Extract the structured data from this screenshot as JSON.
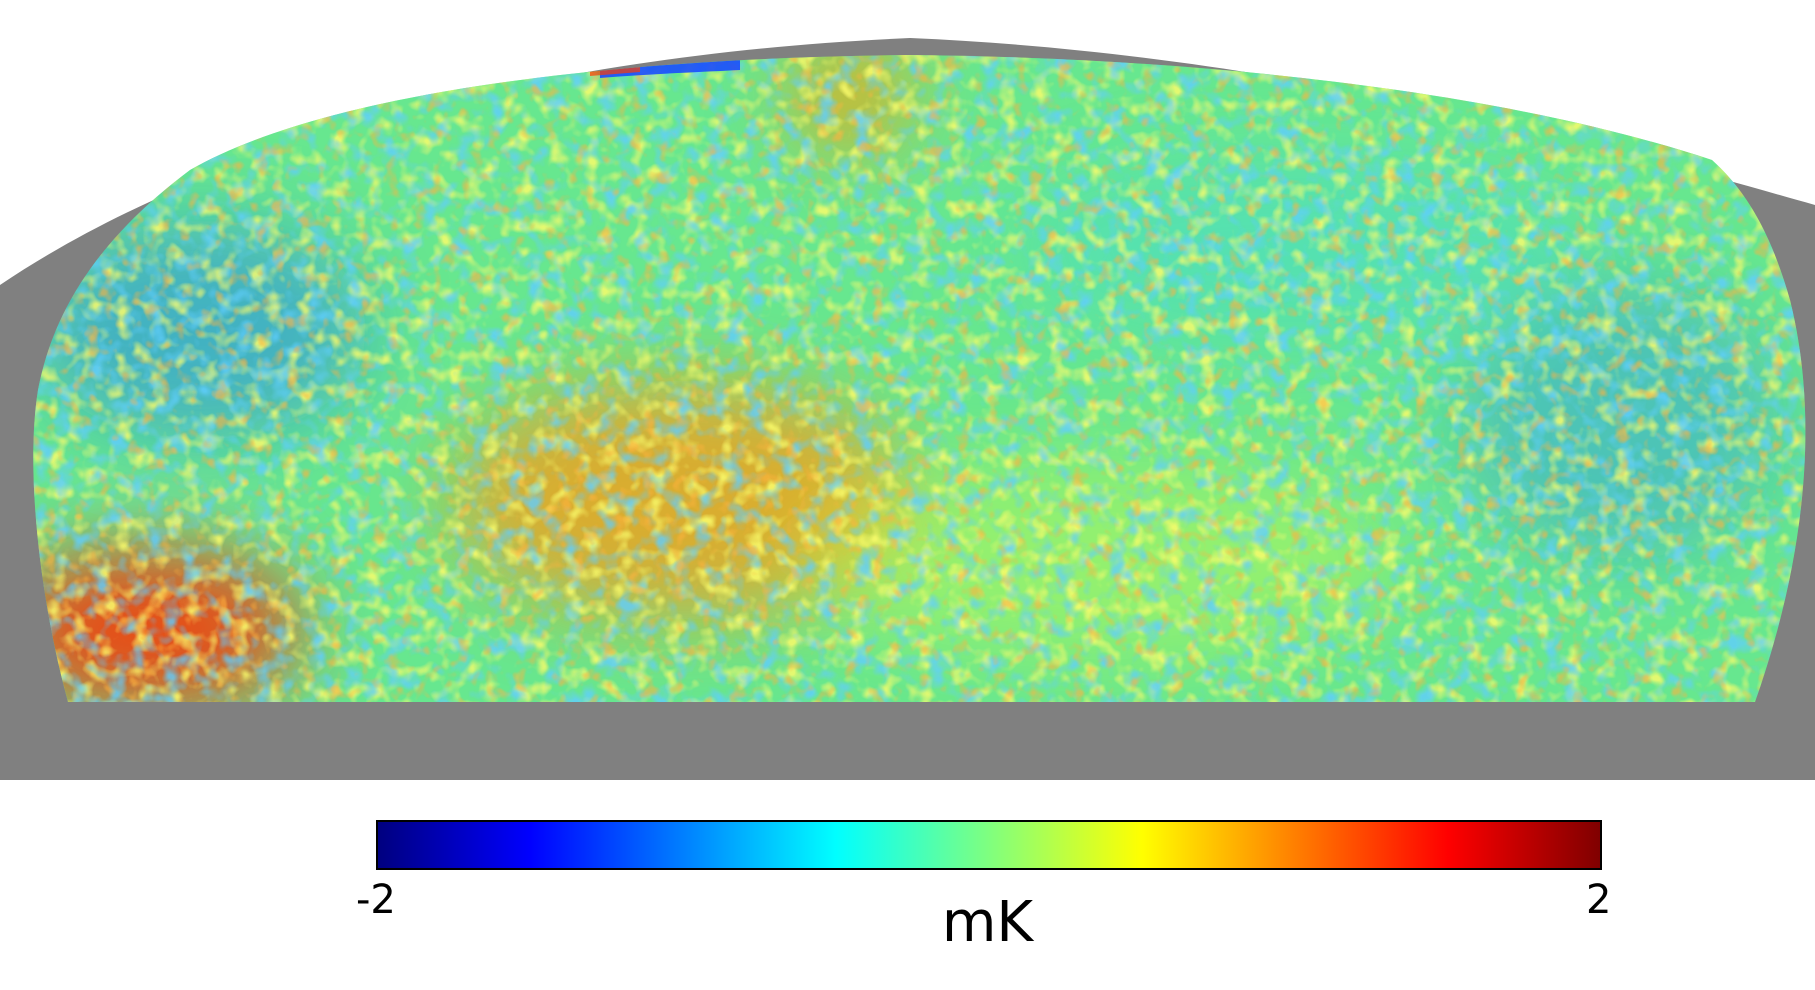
{
  "map": {
    "projection": "mollweide-partial-sky",
    "masked_color": "#808080",
    "background_color": "#ffffff",
    "colormap": "jet",
    "colormap_stops": [
      "#00007f",
      "#0000ff",
      "#007fff",
      "#00ffff",
      "#7fff7f",
      "#ffff00",
      "#ff7f00",
      "#ff0000",
      "#7f0000"
    ],
    "features": [
      {
        "name": "warm-region-lower-left",
        "level": "high",
        "color": "#ff3000"
      },
      {
        "name": "warm-region-center",
        "level": "moderately-high",
        "color": "#ff9a10"
      },
      {
        "name": "cold-region-upper-left",
        "level": "low",
        "color": "#1870ff"
      },
      {
        "name": "cold-region-right",
        "level": "low",
        "color": "#2080ff"
      }
    ]
  },
  "colorbar": {
    "min_label": "-2",
    "max_label": "2",
    "unit": "mK",
    "min_value": -2,
    "max_value": 2
  }
}
